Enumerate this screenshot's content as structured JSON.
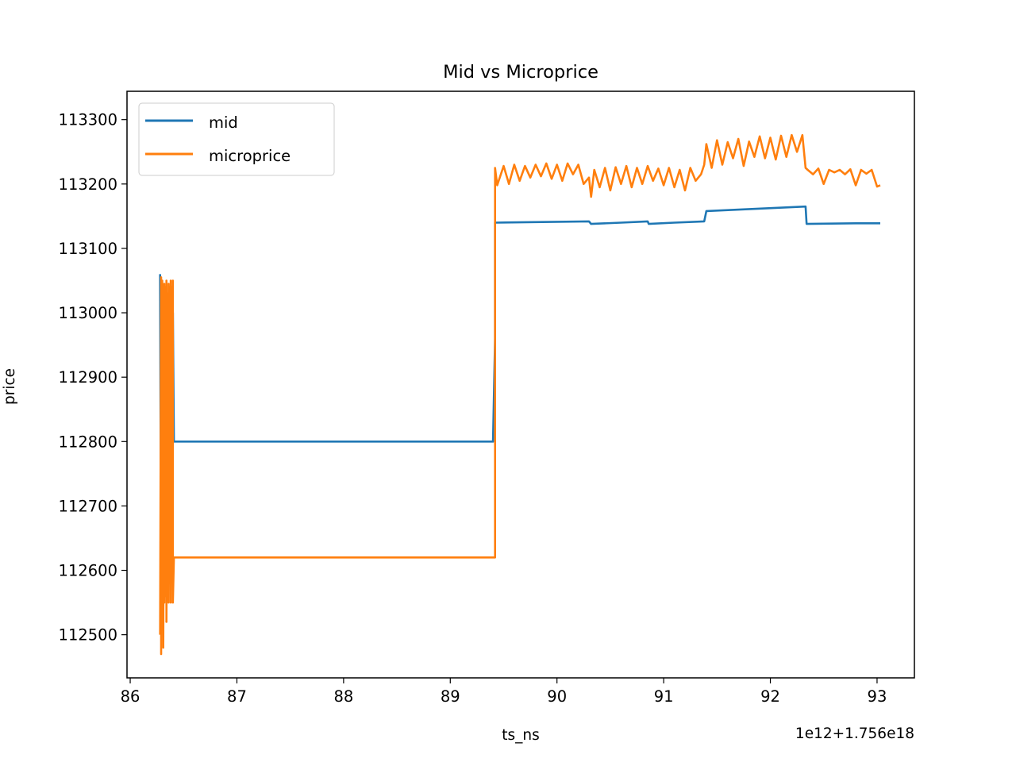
{
  "chart_data": {
    "type": "line",
    "title": "Mid vs Microprice",
    "xlabel": "ts_ns",
    "ylabel": "price",
    "x_offset_label": "1e12+1.756e18",
    "xlim": [
      85.97,
      93.35
    ],
    "ylim": [
      112433,
      113344
    ],
    "xticks": [
      86,
      87,
      88,
      89,
      90,
      91,
      92,
      93
    ],
    "xtick_labels": [
      "86",
      "87",
      "88",
      "89",
      "90",
      "91",
      "92",
      "93"
    ],
    "yticks": [
      112500,
      112600,
      112700,
      112800,
      112900,
      113000,
      113100,
      113200,
      113300
    ],
    "ytick_labels": [
      "112500",
      "112600",
      "112700",
      "112800",
      "112900",
      "113000",
      "113100",
      "113200",
      "113300"
    ],
    "grid": false,
    "legend_position": "top-left",
    "series": [
      {
        "name": "mid",
        "color": "#1f77b4",
        "x": [
          86.28,
          86.28,
          86.29,
          86.3,
          86.31,
          86.32,
          86.33,
          86.34,
          86.35,
          86.36,
          86.37,
          86.38,
          86.39,
          86.4,
          86.41,
          89.4,
          89.42,
          89.42,
          90.3,
          90.32,
          90.6,
          90.85,
          90.86,
          91.1,
          91.38,
          91.4,
          92.33,
          92.34,
          92.8,
          93.03
        ],
        "y": [
          113060,
          113050,
          112560,
          113040,
          112540,
          113030,
          112580,
          113040,
          112560,
          113030,
          112600,
          113020,
          112620,
          113000,
          112800,
          112800,
          112960,
          113140,
          113142,
          113138,
          113140,
          113142,
          113138,
          113140,
          113142,
          113158,
          113165,
          113138,
          113139,
          113139
        ]
      },
      {
        "name": "microprice",
        "color": "#ff7f0e",
        "x": [
          86.28,
          86.29,
          86.29,
          86.3,
          86.3,
          86.31,
          86.31,
          86.32,
          86.32,
          86.33,
          86.33,
          86.34,
          86.34,
          86.35,
          86.35,
          86.36,
          86.36,
          86.37,
          86.37,
          86.38,
          86.38,
          86.39,
          86.39,
          86.4,
          86.4,
          86.41,
          86.42,
          89.42,
          89.42,
          89.44,
          89.5,
          89.55,
          89.6,
          89.65,
          89.7,
          89.75,
          89.8,
          89.85,
          89.9,
          89.95,
          90.0,
          90.05,
          90.1,
          90.15,
          90.2,
          90.25,
          90.3,
          90.32,
          90.35,
          90.4,
          90.45,
          90.5,
          90.55,
          90.6,
          90.65,
          90.7,
          90.75,
          90.8,
          90.85,
          90.9,
          90.95,
          91.0,
          91.05,
          91.1,
          91.15,
          91.2,
          91.25,
          91.3,
          91.35,
          91.38,
          91.4,
          91.45,
          91.5,
          91.55,
          91.6,
          91.65,
          91.7,
          91.75,
          91.8,
          91.85,
          91.9,
          91.95,
          92.0,
          92.05,
          92.1,
          92.15,
          92.2,
          92.25,
          92.3,
          92.33,
          92.35,
          92.4,
          92.45,
          92.5,
          92.55,
          92.6,
          92.65,
          92.7,
          92.75,
          92.8,
          92.85,
          92.9,
          92.95,
          93.0,
          93.03
        ],
        "y": [
          112500,
          113055,
          112470,
          113050,
          112520,
          113040,
          112480,
          113045,
          112550,
          113040,
          112560,
          113050,
          112520,
          113030,
          112600,
          113045,
          112550,
          113040,
          112580,
          113050,
          112550,
          113040,
          112600,
          113050,
          112550,
          112620,
          112620,
          112620,
          113225,
          113198,
          113228,
          113200,
          113230,
          113205,
          113228,
          113210,
          113230,
          113212,
          113232,
          113208,
          113230,
          113205,
          113232,
          113215,
          113230,
          113200,
          113210,
          113180,
          113222,
          113195,
          113225,
          113190,
          113226,
          113200,
          113228,
          113195,
          113225,
          113200,
          113228,
          113205,
          113224,
          113198,
          113225,
          113195,
          113222,
          113190,
          113225,
          113205,
          113215,
          113230,
          113262,
          113225,
          113268,
          113230,
          113265,
          113240,
          113270,
          113228,
          113266,
          113242,
          113274,
          113240,
          113272,
          113238,
          113275,
          113242,
          113276,
          113250,
          113276,
          113225,
          113222,
          113215,
          113224,
          113200,
          113222,
          113218,
          113222,
          113215,
          113223,
          113198,
          113222,
          113216,
          113222,
          113196,
          113198
        ]
      }
    ]
  }
}
